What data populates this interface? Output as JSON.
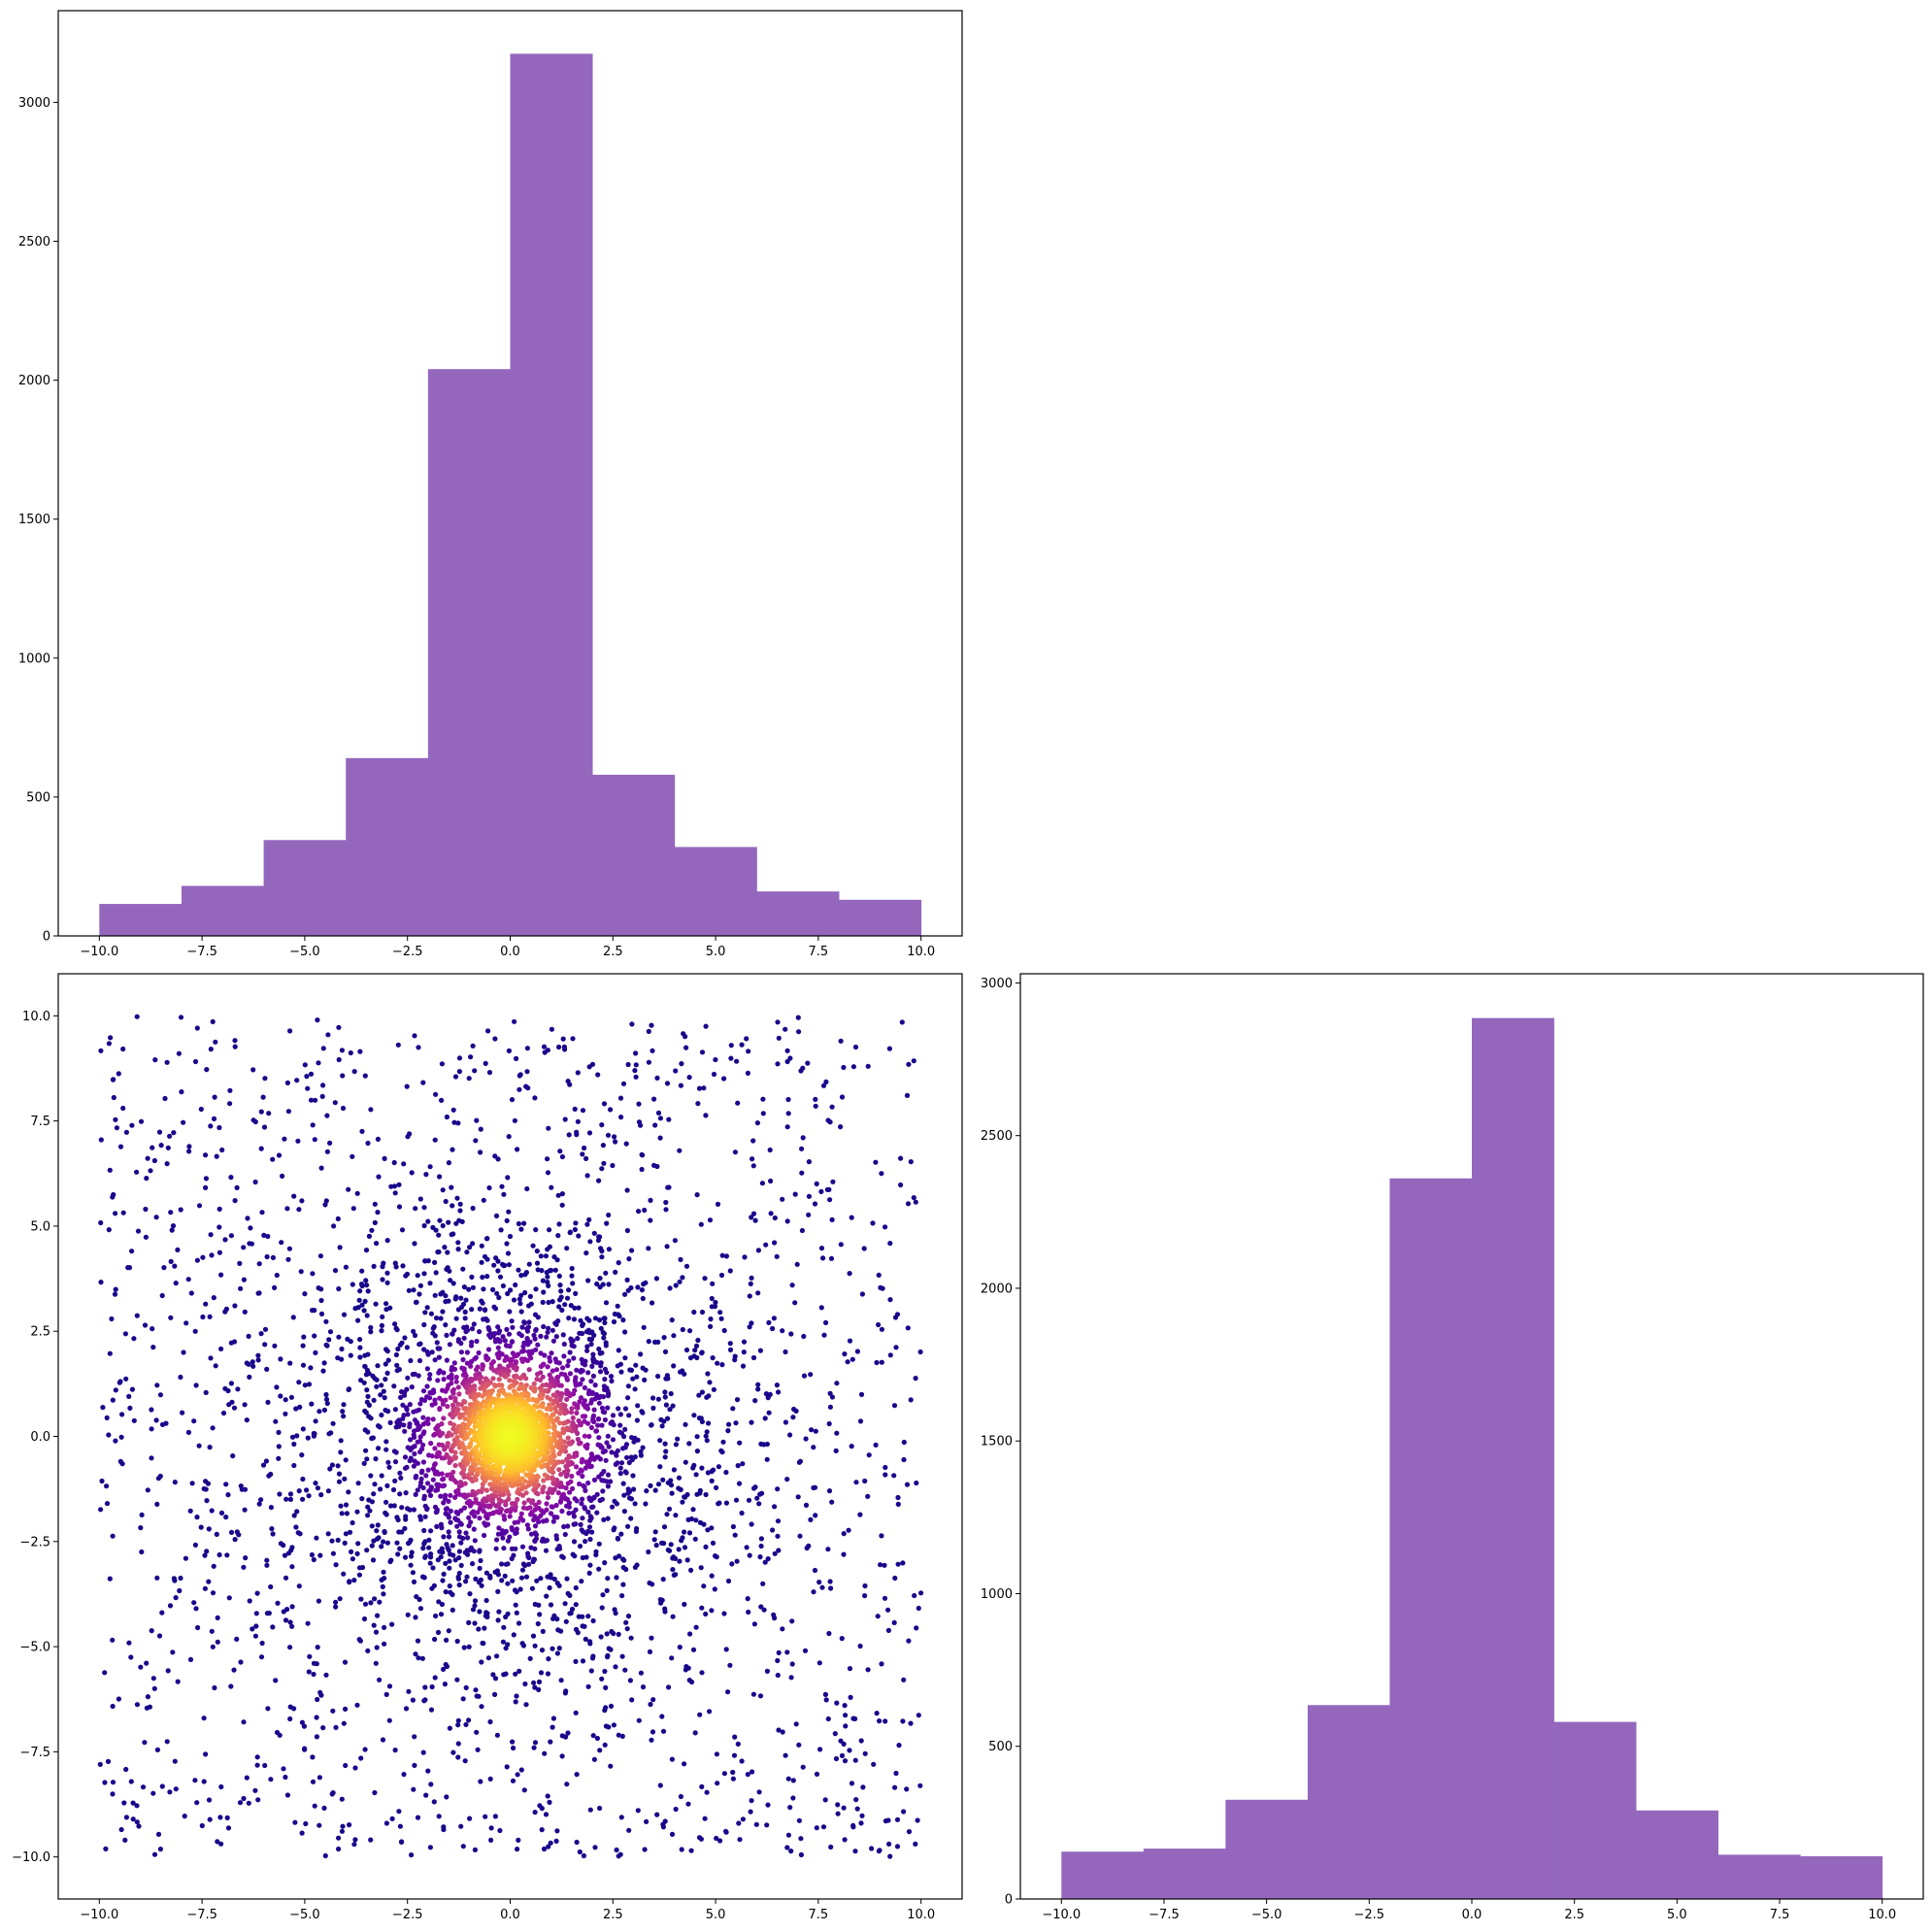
{
  "chart_data": [
    {
      "panel": "top-left",
      "type": "bar",
      "subtype": "histogram",
      "title": "",
      "xlabel": "",
      "ylabel": "",
      "bin_edges": [
        -10,
        -8,
        -6,
        -4,
        -2,
        0,
        2,
        4,
        6,
        8,
        10
      ],
      "values": [
        115,
        180,
        345,
        640,
        2040,
        3175,
        580,
        320,
        160,
        130
      ],
      "xlim": [
        -11,
        11
      ],
      "ylim": [
        0,
        3330
      ],
      "xticks": [
        -10.0,
        -7.5,
        -5.0,
        -2.5,
        0.0,
        2.5,
        5.0,
        7.5,
        10.0
      ],
      "xtick_labels": [
        "−10.0",
        "−7.5",
        "−5.0",
        "−2.5",
        "0.0",
        "2.5",
        "5.0",
        "7.5",
        "10.0"
      ],
      "yticks": [
        0,
        500,
        1000,
        1500,
        2000,
        2500,
        3000
      ],
      "ytick_labels": [
        "0",
        "500",
        "1000",
        "1500",
        "2000",
        "2500",
        "3000"
      ],
      "color": "#9467bd",
      "grid": false
    },
    {
      "panel": "bottom-left",
      "type": "scatter",
      "title": "",
      "xlabel": "",
      "ylabel": "",
      "xlim": [
        -11,
        11
      ],
      "ylim": [
        -11,
        11
      ],
      "xticks": [
        -10.0,
        -7.5,
        -5.0,
        -2.5,
        0.0,
        2.5,
        5.0,
        7.5,
        10.0
      ],
      "xtick_labels": [
        "−10.0",
        "−7.5",
        "−5.0",
        "−2.5",
        "0.0",
        "2.5",
        "5.0",
        "7.5",
        "10.0"
      ],
      "yticks": [
        -10.0,
        -7.5,
        -5.0,
        -2.5,
        0.0,
        2.5,
        5.0,
        7.5,
        10.0
      ],
      "ytick_labels": [
        "−10.0",
        "−7.5",
        "−5.0",
        "−2.5",
        "0.0",
        "2.5",
        "5.0",
        "7.5",
        "10.0"
      ],
      "x_range": [
        -10,
        10
      ],
      "y_range": [
        -10,
        10
      ],
      "point_count_approx": 5000,
      "colormap": "plasma",
      "color_by": "point density (high at center)",
      "grid": false
    },
    {
      "panel": "bottom-right",
      "type": "bar",
      "subtype": "histogram",
      "title": "",
      "xlabel": "",
      "ylabel": "",
      "bin_edges": [
        -10,
        -8,
        -6,
        -4,
        -2,
        0,
        2,
        4,
        6,
        8,
        10
      ],
      "values": [
        155,
        165,
        325,
        635,
        2360,
        2885,
        580,
        290,
        145,
        140
      ],
      "xlim": [
        -11,
        11
      ],
      "ylim": [
        0,
        3030
      ],
      "xticks": [
        -10.0,
        -7.5,
        -5.0,
        -2.5,
        0.0,
        2.5,
        5.0,
        7.5,
        10.0
      ],
      "xtick_labels": [
        "−10.0",
        "−7.5",
        "−5.0",
        "−2.5",
        "0.0",
        "2.5",
        "5.0",
        "7.5",
        "10.0"
      ],
      "yticks": [
        0,
        500,
        1000,
        1500,
        2000,
        2500,
        3000
      ],
      "ytick_labels": [
        "0",
        "500",
        "1000",
        "1500",
        "2000",
        "2500",
        "3000"
      ],
      "color": "#9467bd",
      "grid": false
    }
  ]
}
